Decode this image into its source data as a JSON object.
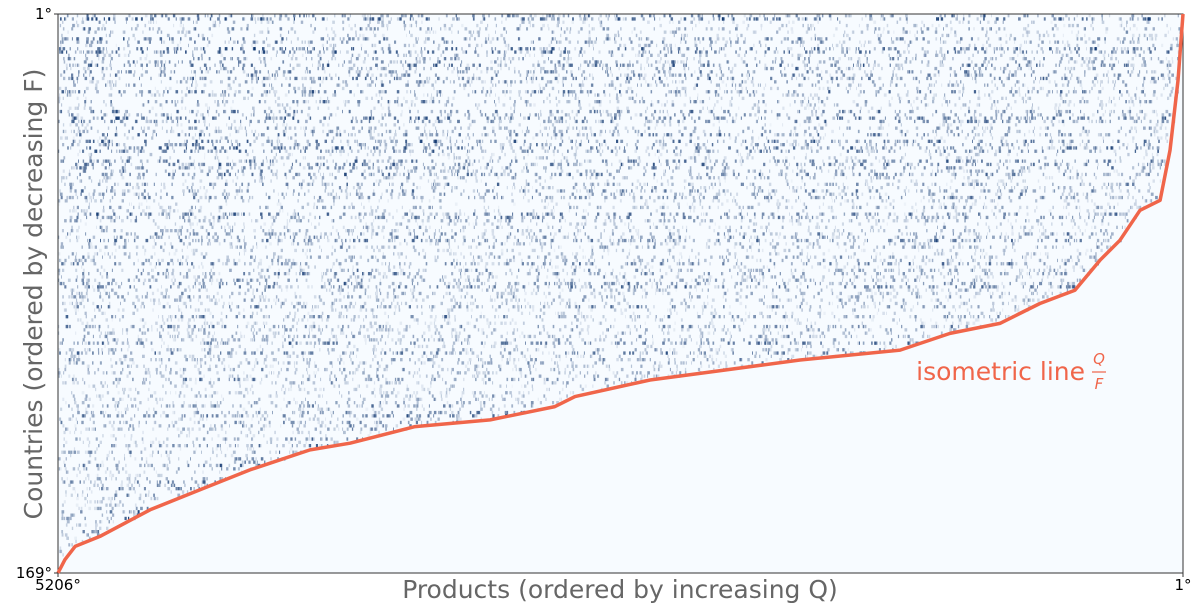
{
  "chart_data": {
    "type": "matrix-line",
    "x_label": "Products (ordered by increasing Q)",
    "y_label": "Countries (ordered by decreasing F)",
    "xlim": [
      5206,
      1
    ],
    "xticks": [
      {
        "value": 5206,
        "label": "5206°"
      },
      {
        "value": 1,
        "label": "1°"
      }
    ],
    "ylim": [
      169,
      1
    ],
    "yticks": [
      {
        "value": 1,
        "label": "1°"
      },
      {
        "value": 169,
        "label": "169°"
      }
    ],
    "matrix_color": "#08306b",
    "background_color": "#f7fbff",
    "annotation": {
      "text": "isometric line",
      "numerator": "Q",
      "denominator": "F"
    },
    "series": [
      {
        "name": "isometric line",
        "color": "#f0654a",
        "x": [
          5206,
          5174,
          5127,
          5012,
          4780,
          4549,
          4318,
          4225,
          4040,
          3855,
          3554,
          3207,
          2907,
          2814,
          2467,
          2236,
          1773,
          1310,
          1079,
          848,
          663,
          501,
          385,
          293,
          200,
          107,
          61,
          24,
          1
        ],
        "values": [
          169,
          165,
          161,
          158,
          150,
          144,
          138,
          136,
          132,
          130,
          125,
          123,
          119,
          116,
          111,
          109,
          105,
          102,
          97,
          94,
          88,
          84,
          75,
          69,
          60,
          57,
          42,
          21,
          1
        ]
      }
    ]
  }
}
